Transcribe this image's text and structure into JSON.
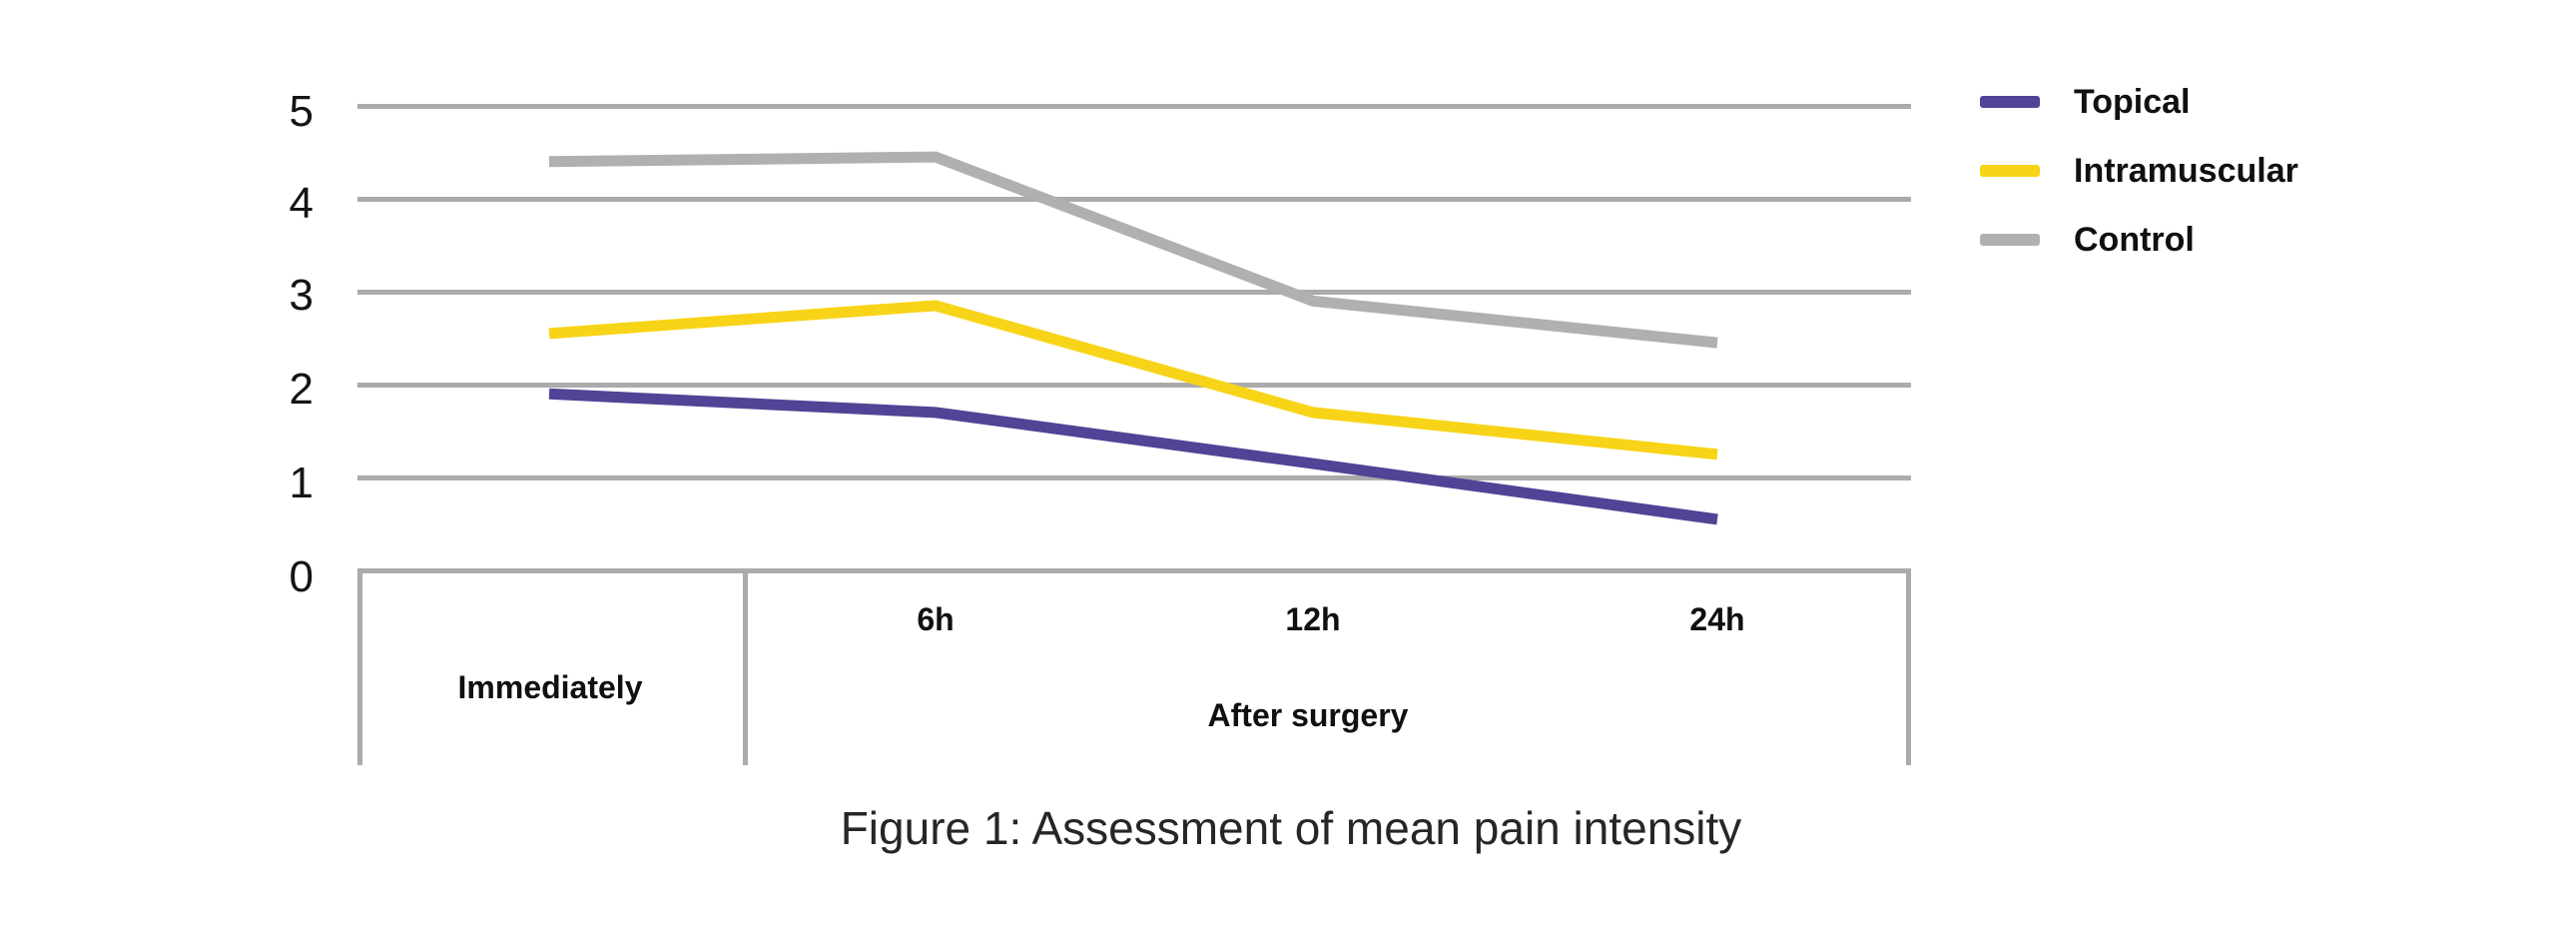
{
  "chart_data": {
    "type": "line",
    "caption": "Figure 1: Assessment of mean pain intensity",
    "x_categories": [
      "Immediately",
      "6h",
      "12h",
      "24h"
    ],
    "x_group_label": "After surgery",
    "ylabel": "",
    "xlabel": "",
    "ylim": [
      0,
      5
    ],
    "yticks": [
      0,
      1,
      2,
      3,
      4,
      5
    ],
    "grid": true,
    "grid_color": "#ababab",
    "legend_position": "top-right",
    "series": [
      {
        "name": "Topical",
        "color": "#4f4495",
        "values": [
          1.9,
          1.7,
          1.15,
          0.55
        ]
      },
      {
        "name": "Intramuscular",
        "color": "#f7d417",
        "values": [
          2.55,
          2.85,
          1.7,
          1.25
        ]
      },
      {
        "name": "Control",
        "color": "#b0b0b0",
        "values": [
          4.4,
          4.45,
          2.9,
          2.45
        ]
      }
    ]
  }
}
